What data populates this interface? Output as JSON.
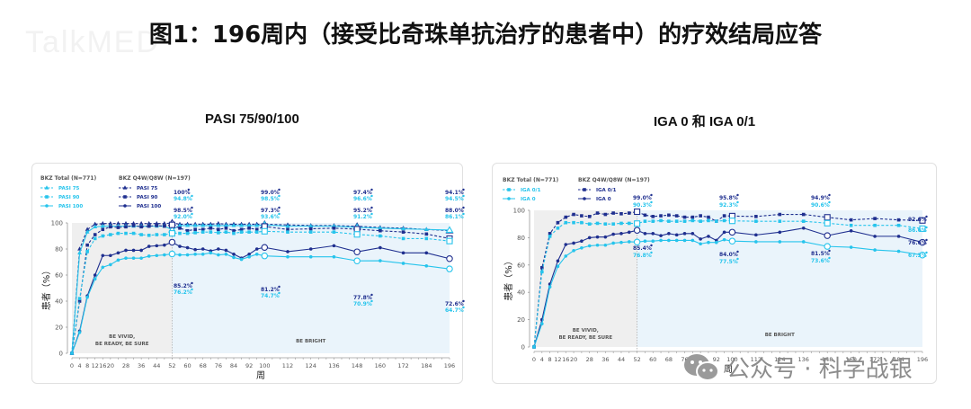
{
  "header": {
    "watermark": "TalkMED",
    "title": "图1：196周内（接受比奇珠单抗治疗的患者中）的疗效结局应答"
  },
  "panels": {
    "left_title": "PASI 75/90/100",
    "right_title": "IGA 0 和 IGA 0/1"
  },
  "footer_watermark": "公众号 · 科学战银",
  "colors": {
    "dark": "#1f2f8f",
    "light": "#26c4ec",
    "phase1_bg": "#efefef",
    "phase2_bg": "#eaf4fb",
    "axis": "#9a9a9a"
  },
  "chart_data": [
    {
      "type": "line",
      "title": "PASI 75/90/100",
      "xlabel": "周",
      "ylabel": "患者（%）",
      "ylim": [
        0,
        100
      ],
      "yticks": [
        0,
        20,
        40,
        60,
        80,
        100
      ],
      "xticks": [
        0,
        4,
        8,
        12,
        16,
        20,
        28,
        36,
        44,
        52,
        60,
        68,
        76,
        84,
        92,
        100,
        112,
        124,
        136,
        148,
        160,
        172,
        184,
        196
      ],
      "phases": [
        {
          "label": "BE VIVID,\nBE READY, BE SURE",
          "from": 0,
          "to": 52
        },
        {
          "label": "BE BRIGHT",
          "from": 52,
          "to": 196
        }
      ],
      "legend": {
        "group1_title": "BKZ Total (N=771)",
        "group1": [
          "PASI 75",
          "PASI 90",
          "PASI 100"
        ],
        "group2_title": "BKZ Q4W/Q8W (N=197)",
        "group2": [
          "PASI 75",
          "PASI 90",
          "PASI 100"
        ]
      },
      "x": [
        0,
        4,
        8,
        12,
        16,
        20,
        24,
        28,
        32,
        36,
        40,
        44,
        48,
        52,
        56,
        60,
        64,
        68,
        72,
        76,
        80,
        84,
        88,
        92,
        96,
        100,
        112,
        124,
        136,
        148,
        160,
        172,
        184,
        196
      ],
      "series": [
        {
          "name": "BKZ Q4W/Q8W PASI 75",
          "group": "Q4W/Q8W",
          "dash": true,
          "marker": "triangle",
          "values": [
            0,
            80,
            95,
            99,
            99.5,
            99.5,
            99.5,
            99.5,
            99.5,
            99.5,
            99.5,
            99.5,
            99.5,
            100,
            99,
            99,
            99,
            99,
            99,
            99.5,
            99,
            99,
            99,
            99,
            99,
            99.0,
            98.5,
            98,
            98,
            97.4,
            96.5,
            96,
            95,
            94.1
          ]
        },
        {
          "name": "BKZ Total PASI 75",
          "group": "Total",
          "dash": false,
          "marker": "triangle",
          "values": [
            0,
            77,
            93,
            97,
            97.5,
            97.5,
            97.5,
            97.5,
            97.5,
            97.5,
            97.5,
            97.5,
            97.5,
            94.8,
            98,
            98,
            98,
            98,
            98,
            98,
            98,
            98,
            98,
            98,
            98,
            98.5,
            97.5,
            97.5,
            97.5,
            96.6,
            96,
            95.5,
            95,
            94.5
          ]
        },
        {
          "name": "BKZ Q4W/Q8W PASI 90",
          "group": "Q4W/Q8W",
          "dash": true,
          "marker": "square",
          "values": [
            0,
            40,
            83,
            91,
            95,
            97,
            96.5,
            97,
            98,
            97,
            97.5,
            98,
            97.5,
            98.5,
            96,
            94,
            95,
            95,
            96,
            95,
            96,
            94,
            95,
            96,
            95,
            97.3,
            95,
            95.5,
            96,
            95.2,
            94,
            93,
            91.5,
            88.0
          ]
        },
        {
          "name": "BKZ Total PASI 90",
          "group": "Total",
          "dash": true,
          "marker": "square",
          "values": [
            0,
            42,
            78,
            88,
            90,
            91,
            92,
            92,
            92,
            91,
            90.5,
            91,
            91,
            92.0,
            92,
            92,
            92.5,
            93,
            93,
            92.5,
            93,
            92,
            93,
            93,
            93,
            93.6,
            93,
            93,
            93,
            91.2,
            90,
            88,
            88,
            86.1
          ]
        },
        {
          "name": "BKZ Q4W/Q8W PASI 100",
          "group": "Q4W/Q8W",
          "dash": false,
          "marker": "circle",
          "values": [
            0,
            17,
            44,
            60,
            75,
            75,
            77,
            79,
            79,
            79,
            82,
            82.5,
            83,
            85.2,
            82,
            81,
            79.5,
            80,
            78.5,
            80,
            79,
            76,
            73,
            76,
            80,
            81.2,
            78,
            80,
            82.5,
            77.8,
            81,
            77,
            77,
            72.6
          ]
        },
        {
          "name": "BKZ Total PASI 100",
          "group": "Total",
          "dash": false,
          "marker": "circle",
          "values": [
            0,
            16,
            43,
            57,
            66,
            68,
            71.5,
            73,
            73,
            73,
            74.5,
            75,
            75.5,
            76.2,
            75.5,
            75.5,
            76,
            76,
            77,
            75.5,
            76,
            73.5,
            72,
            74,
            76,
            74.7,
            74,
            74,
            74,
            70.9,
            71,
            69,
            67,
            64.7
          ]
        }
      ],
      "annotations": [
        {
          "week": 52,
          "labels": [
            "100%",
            "94.8%",
            "98.5%",
            "92.0%",
            "85.2%",
            "76.2%"
          ]
        },
        {
          "week": 100,
          "labels": [
            "99.0%",
            "98.5%",
            "97.3%",
            "93.6%",
            "81.2%",
            "74.7%"
          ]
        },
        {
          "week": 148,
          "labels": [
            "97.4%",
            "96.6%",
            "95.2%",
            "91.2%",
            "77.8%",
            "70.9%"
          ]
        },
        {
          "week": 196,
          "labels": [
            "94.1%",
            "94.5%",
            "88.0%",
            "86.1%",
            "72.6%",
            "64.7%"
          ]
        }
      ]
    },
    {
      "type": "line",
      "title": "IGA 0 和 IGA 0/1",
      "xlabel": "周",
      "ylabel": "患者（%）",
      "ylim": [
        0,
        100
      ],
      "yticks": [
        0,
        20,
        40,
        60,
        80,
        100
      ],
      "xticks": [
        0,
        4,
        8,
        12,
        16,
        20,
        28,
        36,
        44,
        52,
        60,
        68,
        76,
        84,
        92,
        100,
        112,
        124,
        136,
        148,
        160,
        172,
        184,
        196
      ],
      "phases": [
        {
          "label": "BE VIVID,\nBE READY, BE SURE",
          "from": 0,
          "to": 52
        },
        {
          "label": "BE BRIGHT",
          "from": 52,
          "to": 196
        }
      ],
      "legend": {
        "group1_title": "BKZ Total (N=771)",
        "group1": [
          "IGA 0/1",
          "IGA 0"
        ],
        "group2_title": "BKZ Q4W/Q8W (N=197)",
        "group2": [
          "IGA 0/1",
          "IGA 0"
        ]
      },
      "x": [
        0,
        4,
        8,
        12,
        16,
        20,
        24,
        28,
        32,
        36,
        40,
        44,
        48,
        52,
        56,
        60,
        64,
        68,
        72,
        76,
        80,
        84,
        88,
        92,
        96,
        100,
        112,
        124,
        136,
        148,
        160,
        172,
        184,
        196
      ],
      "series": [
        {
          "name": "BKZ Q4W/Q8W IGA 0/1",
          "group": "Q4W/Q8W",
          "dash": true,
          "marker": "square",
          "values": [
            0,
            58,
            83,
            91,
            95,
            97,
            96,
            95.5,
            98,
            97,
            98,
            97.5,
            98,
            99.0,
            96.5,
            95.5,
            96,
            96.5,
            96,
            95,
            95,
            96,
            95,
            92,
            96,
            95.8,
            95.5,
            97,
            97,
            94.9,
            93,
            94,
            93,
            92.6
          ]
        },
        {
          "name": "BKZ Total IGA 0/1",
          "group": "Total",
          "dash": true,
          "marker": "square",
          "values": [
            0,
            55,
            81,
            87,
            91,
            91,
            91,
            90,
            90.5,
            90,
            90,
            90.5,
            90.5,
            90.3,
            92,
            92,
            92.5,
            92,
            92,
            92,
            92.5,
            92,
            92.5,
            92,
            92.5,
            92.3,
            92,
            92,
            92,
            90.6,
            89,
            89,
            89,
            86.6
          ]
        },
        {
          "name": "BKZ Q4W/Q8W IGA 0",
          "group": "Q4W/Q8W",
          "dash": false,
          "marker": "circle",
          "values": [
            0,
            20,
            46,
            63,
            75,
            76,
            77.5,
            80,
            80.5,
            80.5,
            82.5,
            83,
            84,
            85.4,
            83,
            83,
            81.5,
            83,
            82,
            83,
            83,
            79,
            81,
            78,
            84,
            84.0,
            82,
            84,
            87,
            81.5,
            85,
            81,
            81,
            76.6
          ]
        },
        {
          "name": "BKZ Total IGA 0",
          "group": "Total",
          "dash": false,
          "marker": "circle",
          "values": [
            0,
            17,
            44,
            59,
            66.5,
            70.5,
            72.5,
            74,
            74.5,
            74.5,
            76,
            76.5,
            77,
            76.8,
            77.5,
            77.5,
            78,
            78,
            78,
            78,
            78,
            75.5,
            76.5,
            76.5,
            78.5,
            77.5,
            77,
            77,
            77,
            73.6,
            73,
            71,
            70,
            67.3
          ]
        }
      ],
      "annotations": [
        {
          "week": 52,
          "labels": [
            "99.0%",
            "90.3%",
            "85.4%",
            "76.8%"
          ]
        },
        {
          "week": 100,
          "labels": [
            "95.8%",
            "92.3%",
            "84.0%",
            "77.5%"
          ]
        },
        {
          "week": 148,
          "labels": [
            "94.9%",
            "90.6%",
            "81.5%",
            "73.6%"
          ]
        },
        {
          "week": 196,
          "labels": [
            "92.6%",
            "86.6%",
            "76.6%",
            "67.3%"
          ]
        }
      ]
    }
  ]
}
